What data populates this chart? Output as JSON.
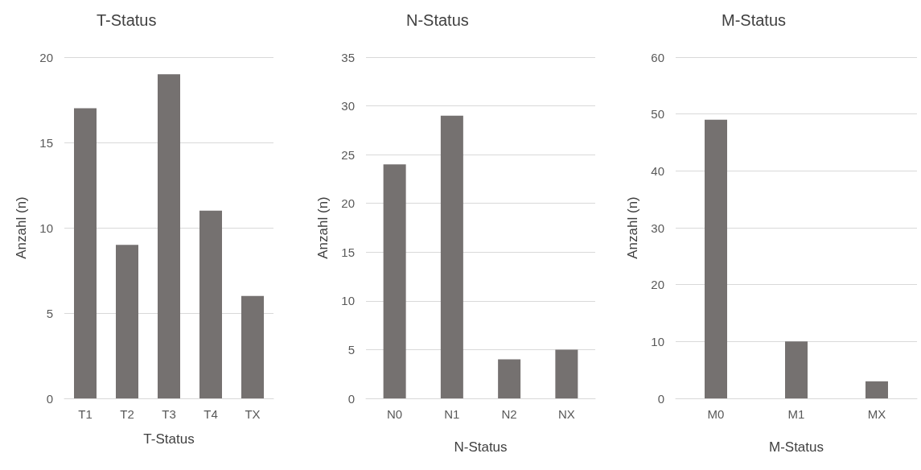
{
  "chart_data": [
    {
      "type": "bar",
      "title": "T-Status",
      "xlabel": "T-Status",
      "ylabel": "Anzahl (n)",
      "categories": [
        "T1",
        "T2",
        "T3",
        "T4",
        "TX"
      ],
      "values": [
        17,
        9,
        19,
        11,
        6
      ],
      "color": "#757170",
      "ylim": [
        0,
        20
      ],
      "yticks": [
        0,
        5,
        10,
        15,
        20
      ],
      "grid": "y"
    },
    {
      "type": "bar",
      "title": "N-Status",
      "xlabel": "N-Status",
      "ylabel": "Anzahl (n)",
      "categories": [
        "N0",
        "N1",
        "N2",
        "NX"
      ],
      "values": [
        24,
        29,
        4,
        5
      ],
      "color": "#757170",
      "ylim": [
        0,
        35
      ],
      "yticks": [
        0,
        5,
        10,
        15,
        20,
        25,
        30,
        35
      ],
      "grid": "y"
    },
    {
      "type": "bar",
      "title": "M-Status",
      "xlabel": "M-Status",
      "ylabel": "Anzahl (n)",
      "categories": [
        "M0",
        "M1",
        "MX"
      ],
      "values": [
        49,
        10,
        3
      ],
      "color": "#757170",
      "ylim": [
        0,
        60
      ],
      "yticks": [
        0,
        10,
        20,
        30,
        40,
        50,
        60
      ],
      "grid": "y"
    }
  ]
}
